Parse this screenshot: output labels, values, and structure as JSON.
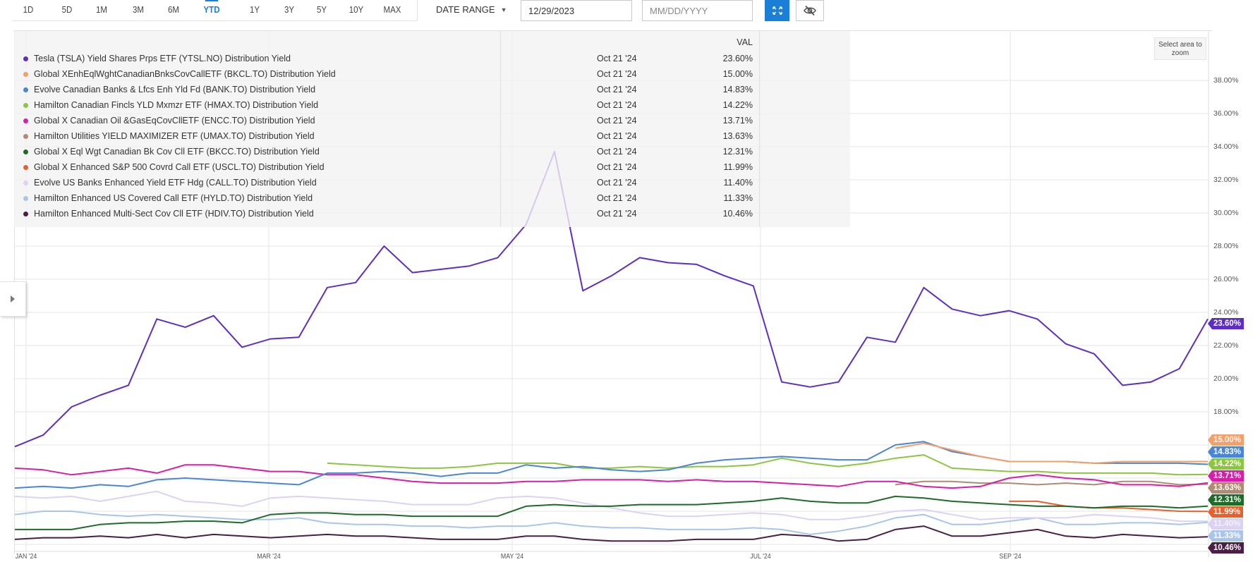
{
  "toolbar": {
    "ranges": [
      "1D",
      "5D",
      "1M",
      "3M",
      "6M",
      "YTD",
      "1Y",
      "3Y",
      "5Y",
      "10Y",
      "MAX"
    ],
    "active_range": "YTD",
    "date_range_label": "DATE RANGE",
    "start_date_value": "12/29/2023",
    "end_date_placeholder": "MM/DD/YYYY",
    "fullscreen_icon": "expand-arrows-icon",
    "hide_icon": "eye-slash-icon"
  },
  "legend": {
    "value_header": "VAL",
    "rows": [
      {
        "name": "Tesla (TSLA) Yield Shares Prps ETF (YTSL.NO) Distribution Yield",
        "date": "Oct 21 '24",
        "value": "23.60%",
        "color": "#5c2fc2"
      },
      {
        "name": "Global XEnhEqlWghtCanadianBnksCovCallETF (BKCL.TO) Distribution Yield",
        "date": "Oct 21 '24",
        "value": "15.00%",
        "color": "#f4a06b"
      },
      {
        "name": "Evolve Canadian Banks & Lfcs Enh Yld Fd (BANK.TO) Distribution Yield",
        "date": "Oct 21 '24",
        "value": "14.83%",
        "color": "#4a86d3"
      },
      {
        "name": "Hamilton Canadian Fincls YLD Mxmzr ETF (HMAX.TO) Distribution Yield",
        "date": "Oct 21 '24",
        "value": "14.22%",
        "color": "#8cc63f"
      },
      {
        "name": "Global X Canadian Oil &GasEqCovCllETF (ENCC.TO) Distribution Yield",
        "date": "Oct 21 '24",
        "value": "13.71%",
        "color": "#d61fa8"
      },
      {
        "name": "Hamilton Utilities YIELD MAXIMIZER ETF (UMAX.TO) Distribution Yield",
        "date": "Oct 21 '24",
        "value": "13.63%",
        "color": "#b08a73"
      },
      {
        "name": "Global X Eql Wgt Canadian Bk Cov Cll ETF (BKCC.TO) Distribution Yield",
        "date": "Oct 21 '24",
        "value": "12.31%",
        "color": "#1e6b2a"
      },
      {
        "name": "Global X Enhanced S&P 500 Covrd Call ETF (USCL.TO) Distribution Yield",
        "date": "Oct 21 '24",
        "value": "11.99%",
        "color": "#e8602c"
      },
      {
        "name": "Evolve US Banks Enhanced Yield ETF Hdg (CALL.TO) Distribution Yield",
        "date": "Oct 21 '24",
        "value": "11.40%",
        "color": "#dcd3f2"
      },
      {
        "name": "Hamilton Enhanced US Covered Call ETF (HYLD.TO) Distribution Yield",
        "date": "Oct 21 '24",
        "value": "11.33%",
        "color": "#a9c6ea"
      },
      {
        "name": "Hamilton Enhanced Multi-Sect Cov Cll ETF (HDIV.TO) Distribution Yield",
        "date": "Oct 21 '24",
        "value": "10.46%",
        "color": "#4a1f45"
      }
    ]
  },
  "zoom_hint": "Select area to zoom",
  "chart_data": {
    "type": "line",
    "title": "",
    "xlabel": "",
    "ylabel": "Distribution Yield",
    "ylim": [
      10,
      39
    ],
    "y_ticks": [
      "38.00%",
      "36.00%",
      "34.00%",
      "32.00%",
      "30.00%",
      "28.00%",
      "26.00%",
      "24.00%",
      "22.00%",
      "20.00%",
      "18.00%"
    ],
    "x_ticks": [
      "JAN '24",
      "MAR '24",
      "MAY '24",
      "JUL '24",
      "SEP '24"
    ],
    "x_range": [
      "Dec 29 '23",
      "Oct 21 '24"
    ],
    "grid": true,
    "legend_position": "top-left overlay",
    "x": [
      "Dec 29",
      "Jan 5",
      "Jan 12",
      "Jan 19",
      "Jan 26",
      "Feb 2",
      "Feb 9",
      "Feb 16",
      "Feb 23",
      "Mar 1",
      "Mar 8",
      "Mar 15",
      "Mar 22",
      "Mar 29",
      "Apr 5",
      "Apr 12",
      "Apr 19",
      "Apr 26",
      "May 3",
      "May 10",
      "May 17",
      "May 24",
      "May 31",
      "Jun 7",
      "Jun 14",
      "Jun 21",
      "Jun 28",
      "Jul 5",
      "Jul 12",
      "Jul 19",
      "Jul 26",
      "Aug 2",
      "Aug 9",
      "Aug 16",
      "Aug 23",
      "Aug 30",
      "Sep 6",
      "Sep 13",
      "Sep 20",
      "Sep 27",
      "Oct 4",
      "Oct 11",
      "Oct 21"
    ],
    "series": [
      {
        "name": "YTSL.NO",
        "color": "#5c2fc2",
        "values": [
          15.9,
          16.6,
          18.3,
          19.0,
          19.6,
          23.6,
          23.1,
          23.8,
          21.9,
          22.4,
          22.5,
          25.5,
          25.8,
          28.0,
          26.4,
          26.6,
          26.8,
          27.3,
          29.3,
          33.7,
          25.3,
          26.2,
          27.3,
          27.0,
          26.9,
          26.2,
          25.6,
          19.8,
          19.5,
          19.8,
          22.5,
          22.2,
          25.5,
          24.2,
          23.8,
          24.1,
          23.6,
          22.1,
          21.5,
          19.6,
          19.8,
          20.6,
          23.6
        ]
      },
      {
        "name": "BKCL.TO",
        "color": "#f4a06b",
        "values": [
          null,
          null,
          null,
          null,
          null,
          null,
          null,
          null,
          null,
          null,
          null,
          null,
          null,
          null,
          null,
          null,
          null,
          null,
          null,
          null,
          null,
          null,
          null,
          null,
          null,
          null,
          null,
          null,
          null,
          null,
          null,
          15.8,
          16.1,
          15.7,
          15.3,
          15.0,
          15.0,
          15.0,
          14.9,
          15.0,
          15.0,
          15.0,
          15.0
        ]
      },
      {
        "name": "BANK.TO",
        "color": "#4a86d3",
        "values": [
          13.4,
          13.5,
          13.4,
          13.6,
          13.5,
          13.9,
          14.0,
          13.9,
          13.8,
          13.7,
          13.6,
          14.3,
          14.3,
          14.4,
          14.3,
          14.1,
          14.3,
          14.3,
          14.8,
          14.6,
          14.7,
          14.5,
          14.4,
          14.5,
          14.9,
          15.1,
          15.2,
          15.3,
          15.2,
          15.1,
          15.1,
          16.0,
          16.2,
          15.6,
          15.3,
          15.0,
          15.0,
          15.0,
          14.9,
          14.9,
          14.9,
          14.9,
          14.83
        ]
      },
      {
        "name": "HMAX.TO",
        "color": "#8cc63f",
        "values": [
          null,
          null,
          null,
          null,
          null,
          null,
          null,
          null,
          null,
          null,
          null,
          14.9,
          14.8,
          14.7,
          14.6,
          14.6,
          14.7,
          14.9,
          14.9,
          14.9,
          14.6,
          14.6,
          14.7,
          14.6,
          14.7,
          14.7,
          14.8,
          15.2,
          14.9,
          14.7,
          14.9,
          15.2,
          15.4,
          14.6,
          14.5,
          14.4,
          14.4,
          14.3,
          14.3,
          14.3,
          14.3,
          14.2,
          14.22
        ]
      },
      {
        "name": "ENCC.TO",
        "color": "#d61fa8",
        "values": [
          14.6,
          14.5,
          14.2,
          14.4,
          14.6,
          14.3,
          14.8,
          14.8,
          14.6,
          14.4,
          14.4,
          14.2,
          14.2,
          14.0,
          13.8,
          13.7,
          13.7,
          13.7,
          13.8,
          13.8,
          13.9,
          13.9,
          13.9,
          13.8,
          13.9,
          13.8,
          13.8,
          13.7,
          13.6,
          13.5,
          13.8,
          13.8,
          13.5,
          13.4,
          13.5,
          14.0,
          14.2,
          14.0,
          13.9,
          13.6,
          13.6,
          13.5,
          13.71
        ]
      },
      {
        "name": "UMAX.TO",
        "color": "#b08a73",
        "values": [
          null,
          null,
          null,
          null,
          null,
          null,
          null,
          null,
          null,
          null,
          null,
          null,
          null,
          null,
          null,
          null,
          null,
          null,
          null,
          null,
          null,
          null,
          null,
          null,
          null,
          null,
          null,
          null,
          null,
          null,
          null,
          13.6,
          13.8,
          13.8,
          13.7,
          13.7,
          13.6,
          13.7,
          13.6,
          13.8,
          13.8,
          13.6,
          13.63
        ]
      },
      {
        "name": "BKCC.TO",
        "color": "#1e6b2a",
        "values": [
          10.9,
          10.9,
          10.9,
          11.2,
          11.3,
          11.3,
          11.4,
          11.4,
          11.3,
          11.8,
          11.9,
          11.9,
          11.8,
          11.8,
          11.7,
          11.7,
          11.7,
          11.7,
          12.3,
          12.4,
          12.3,
          12.3,
          12.4,
          12.4,
          12.4,
          12.5,
          12.6,
          12.8,
          12.6,
          12.5,
          12.5,
          12.9,
          12.8,
          12.6,
          12.5,
          12.4,
          12.3,
          12.3,
          12.2,
          12.3,
          12.3,
          12.2,
          12.31
        ]
      },
      {
        "name": "USCL.TO",
        "color": "#e8602c",
        "values": [
          null,
          null,
          null,
          null,
          null,
          null,
          null,
          null,
          null,
          null,
          null,
          null,
          null,
          null,
          null,
          null,
          null,
          null,
          null,
          null,
          null,
          null,
          null,
          null,
          null,
          null,
          null,
          null,
          null,
          null,
          null,
          null,
          null,
          null,
          null,
          12.6,
          12.6,
          12.3,
          12.2,
          12.2,
          12.1,
          12.0,
          11.99
        ]
      },
      {
        "name": "CALL.TO",
        "color": "#dcd3f2",
        "values": [
          12.9,
          12.8,
          12.9,
          12.6,
          12.9,
          13.2,
          12.6,
          12.5,
          12.3,
          12.8,
          12.9,
          12.8,
          12.7,
          12.6,
          12.4,
          12.4,
          12.4,
          12.8,
          12.9,
          12.8,
          12.5,
          12.2,
          11.9,
          11.7,
          11.7,
          11.8,
          11.9,
          11.8,
          11.5,
          11.5,
          11.7,
          12.0,
          12.1,
          11.8,
          11.5,
          11.6,
          11.6,
          11.6,
          11.8,
          11.7,
          11.6,
          11.4,
          11.4
        ]
      },
      {
        "name": "HYLD.TO",
        "color": "#a9c6ea",
        "values": [
          11.8,
          12.0,
          12.0,
          11.8,
          11.7,
          11.8,
          11.7,
          11.6,
          11.5,
          11.5,
          11.6,
          11.3,
          11.2,
          11.2,
          11.1,
          11.1,
          11.0,
          11.1,
          11.1,
          11.3,
          11.1,
          11.0,
          11.0,
          10.9,
          10.9,
          10.9,
          11.0,
          10.9,
          10.6,
          10.8,
          11.1,
          11.6,
          11.8,
          11.2,
          11.2,
          11.4,
          11.6,
          11.2,
          11.2,
          11.3,
          11.3,
          11.2,
          11.33
        ]
      },
      {
        "name": "HDIV.TO",
        "color": "#4a1f45",
        "values": [
          10.3,
          10.4,
          10.4,
          10.5,
          10.4,
          10.6,
          10.4,
          10.6,
          10.5,
          10.4,
          10.5,
          10.6,
          10.5,
          10.5,
          10.4,
          10.3,
          10.3,
          10.3,
          10.5,
          10.5,
          10.3,
          10.2,
          10.2,
          10.2,
          10.3,
          10.3,
          10.3,
          10.6,
          10.5,
          10.2,
          10.3,
          10.9,
          11.1,
          10.5,
          10.5,
          10.7,
          10.9,
          10.5,
          10.4,
          10.6,
          10.5,
          10.4,
          10.46
        ]
      }
    ]
  }
}
